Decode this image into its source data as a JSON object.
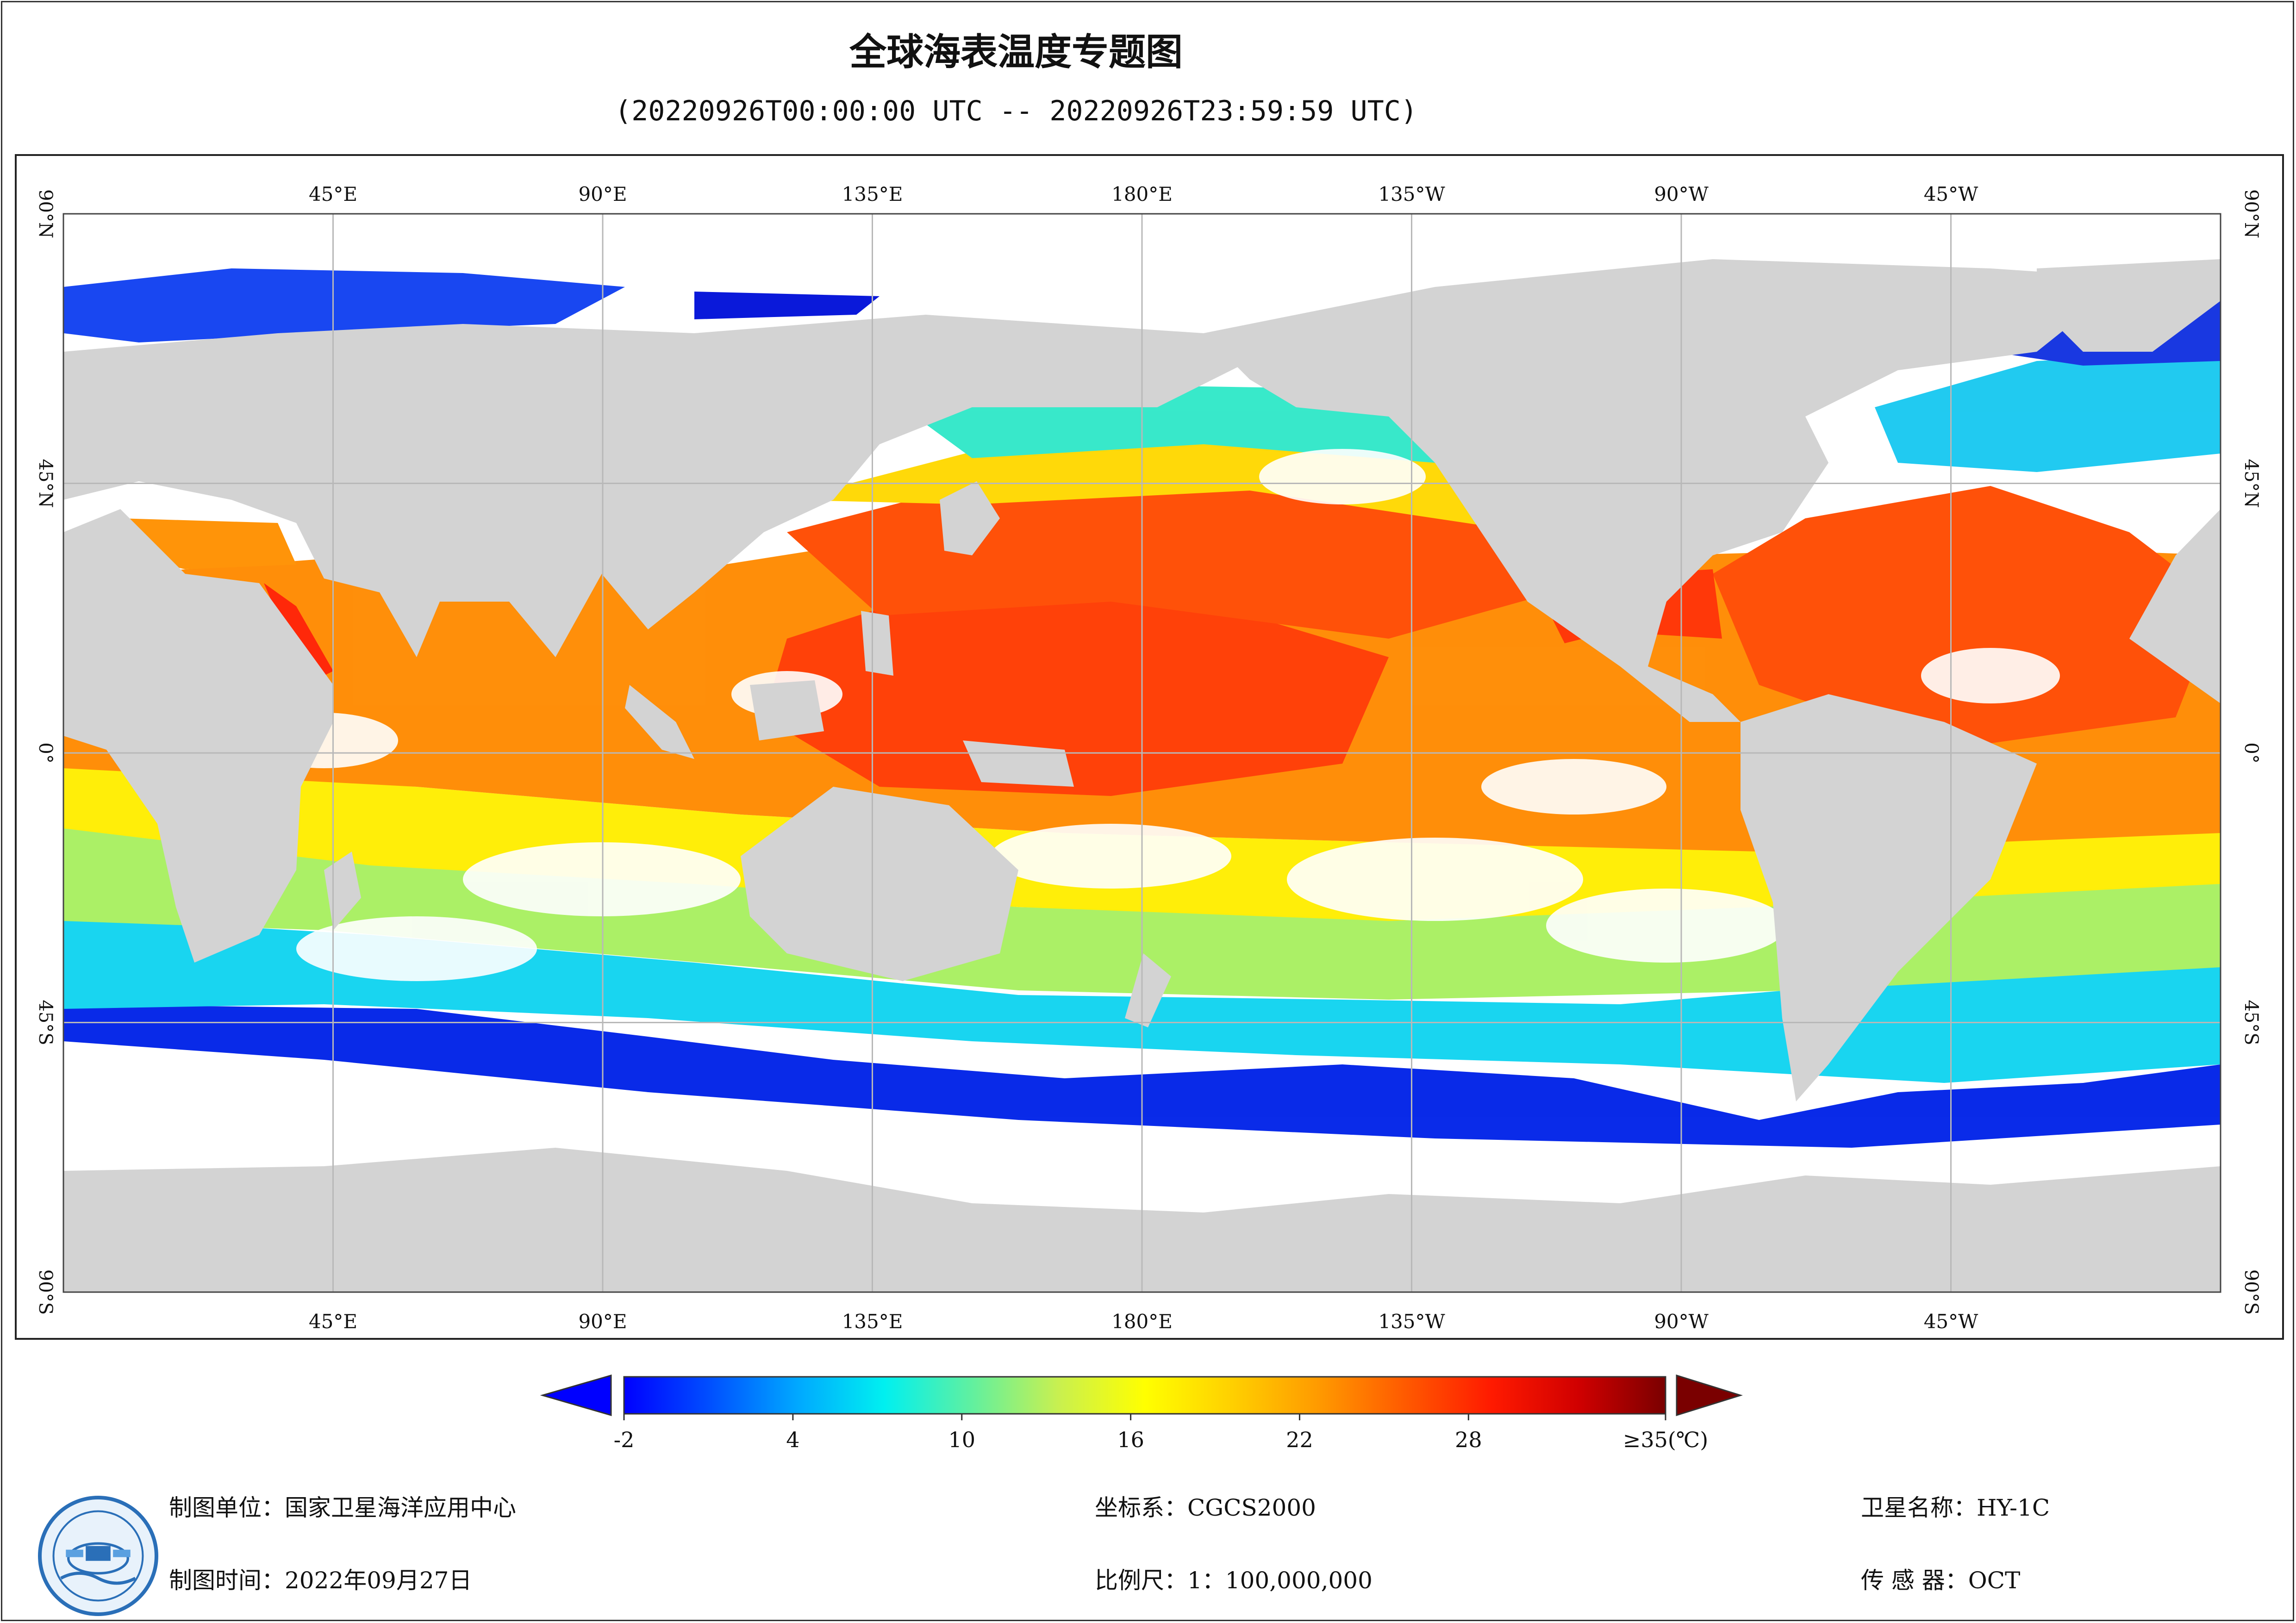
{
  "header": {
    "title": "全球海表温度专题图",
    "subtitle": "(20220926T00:00:00 UTC -- 20220926T23:59:59 UTC)"
  },
  "map": {
    "projection": "equirectangular, central meridian 180°",
    "ocean_no_data_color": "#ffffff",
    "land_color": "#d3d3d3",
    "grid_color": "#b8b8b8",
    "longitude_labels": [
      "45°E",
      "90°E",
      "135°E",
      "180°E",
      "135°W",
      "90°W",
      "45°W"
    ],
    "latitude_labels": [
      "90°N",
      "45°N",
      "0°",
      "45°S",
      "90°S"
    ]
  },
  "colorbar": {
    "tick_labels": [
      "-2",
      "4",
      "10",
      "16",
      "22",
      "28",
      "≥35(℃)"
    ],
    "tick_values": [
      -2,
      4,
      10,
      16,
      22,
      28,
      35
    ],
    "range": [
      -2,
      35
    ],
    "colors": [
      "#0000ff",
      "#0050ff",
      "#00a8ff",
      "#00f0f0",
      "#60f0a0",
      "#c8f050",
      "#ffff00",
      "#ffd000",
      "#ff9a00",
      "#ff5a00",
      "#ff1a00",
      "#d00000",
      "#7a0000"
    ],
    "under_color": "#0000ff",
    "over_color": "#7a0000"
  },
  "footer": {
    "unit": "制图单位：国家卫星海洋应用中心",
    "time": "制图时间：2022年09月27日",
    "crs": "坐标系：CGCS2000",
    "scale": "比例尺：1：100,000,000",
    "satellite": "卫星名称：HY-1C",
    "sensor": "传  感  器：OCT"
  },
  "logo": {
    "name": "national-satellite-ocean-application-service-logo"
  }
}
